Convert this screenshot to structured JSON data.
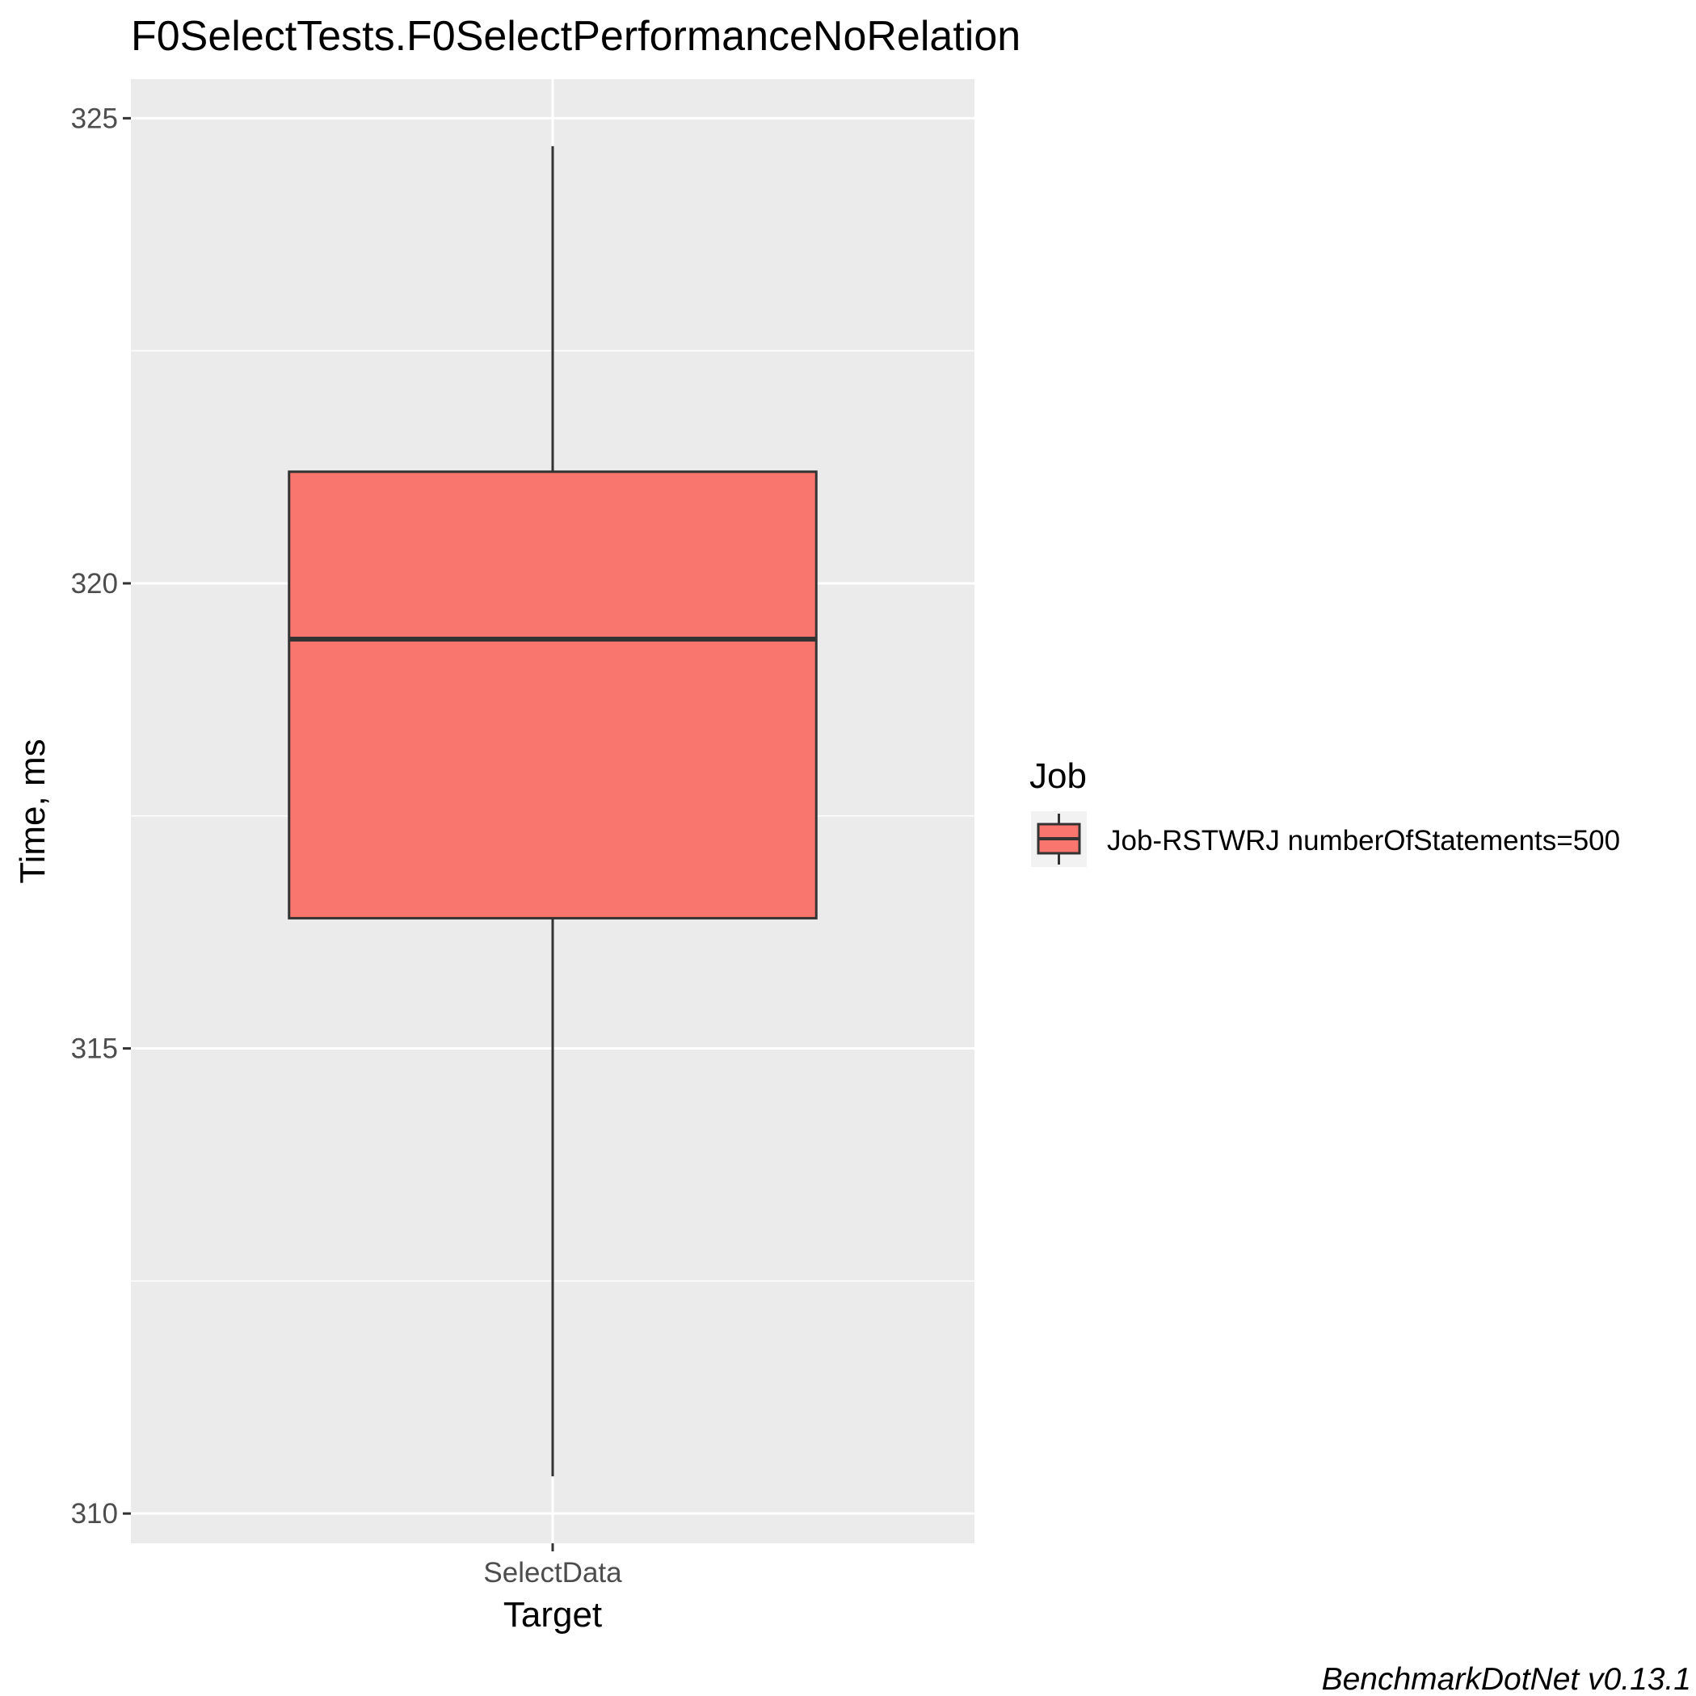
{
  "chart_data": {
    "type": "box",
    "title": "F0SelectTests.F0SelectPerformanceNoRelation",
    "xlabel": "Target",
    "ylabel": "Time, ms",
    "categories": [
      "SelectData"
    ],
    "series": [
      {
        "name": "Job-RSTWRJ numberOfStatements=500",
        "boxes": [
          {
            "category": "SelectData",
            "min": 310.4,
            "q1": 316.4,
            "median": 319.4,
            "q3": 321.2,
            "max": 324.7
          }
        ]
      }
    ],
    "ylim": [
      309.68,
      325.42
    ],
    "yticks": [
      310,
      315,
      320,
      325
    ],
    "ytick_labels": [
      "310",
      "315",
      "320",
      "325"
    ],
    "grid": true,
    "legend": {
      "title": "Job",
      "position": "right"
    },
    "caption": "BenchmarkDotNet v0.13.1",
    "colors": {
      "fill": "#f8766d",
      "outline": "#333333",
      "panel": "#ebebeb",
      "gridline": "#ffffff",
      "tick": "#333333",
      "tick_text": "#4d4d4d"
    }
  }
}
